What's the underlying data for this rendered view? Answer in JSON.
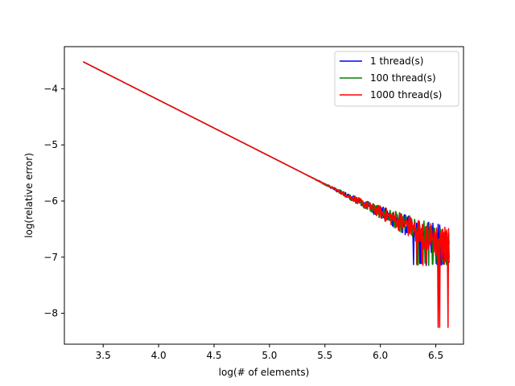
{
  "chart_data": {
    "type": "line",
    "title": "",
    "xlabel": "log(# of elements)",
    "ylabel": "log(relative error)",
    "xlim": [
      3.15,
      6.75
    ],
    "ylim": [
      -8.55,
      -3.25
    ],
    "xticks": [
      3.5,
      4.0,
      4.5,
      5.0,
      5.5,
      6.0,
      6.5
    ],
    "xtick_labels": [
      "3.5",
      "4.0",
      "4.5",
      "5.0",
      "5.5",
      "6.0",
      "6.5"
    ],
    "yticks": [
      -8,
      -7,
      -6,
      -5,
      -4
    ],
    "ytick_labels": [
      "−8",
      "−7",
      "−6",
      "−5",
      "−4"
    ],
    "grid": false,
    "legend_position": "top-right",
    "trend": {
      "x_start": 3.32,
      "y_start": -3.52,
      "slope": -1.0
    },
    "series": [
      {
        "name": "1 thread(s)",
        "color": "#0000ff",
        "x": [
          3.32,
          4.0,
          4.5,
          5.0,
          5.5,
          5.9,
          6.1,
          6.3,
          6.5,
          6.62
        ],
        "y": [
          -3.52,
          -4.2,
          -4.7,
          -5.2,
          -5.7,
          -6.1,
          -6.3,
          -6.5,
          -6.7,
          -6.82
        ]
      },
      {
        "name": "100 thread(s)",
        "color": "#008000",
        "x": [
          3.32,
          4.0,
          4.5,
          5.0,
          5.5,
          5.9,
          6.1,
          6.3,
          6.5,
          6.62
        ],
        "y": [
          -3.52,
          -4.2,
          -4.7,
          -5.2,
          -5.7,
          -6.1,
          -6.3,
          -6.5,
          -6.7,
          -6.82
        ]
      },
      {
        "name": "1000 thread(s)",
        "color": "#ff0000",
        "x": [
          3.32,
          4.0,
          4.5,
          5.0,
          5.5,
          5.9,
          6.1,
          6.3,
          6.5,
          6.62
        ],
        "y": [
          -3.52,
          -4.2,
          -4.7,
          -5.2,
          -5.7,
          -6.1,
          -6.3,
          -6.5,
          -6.7,
          -6.82
        ]
      }
    ]
  }
}
